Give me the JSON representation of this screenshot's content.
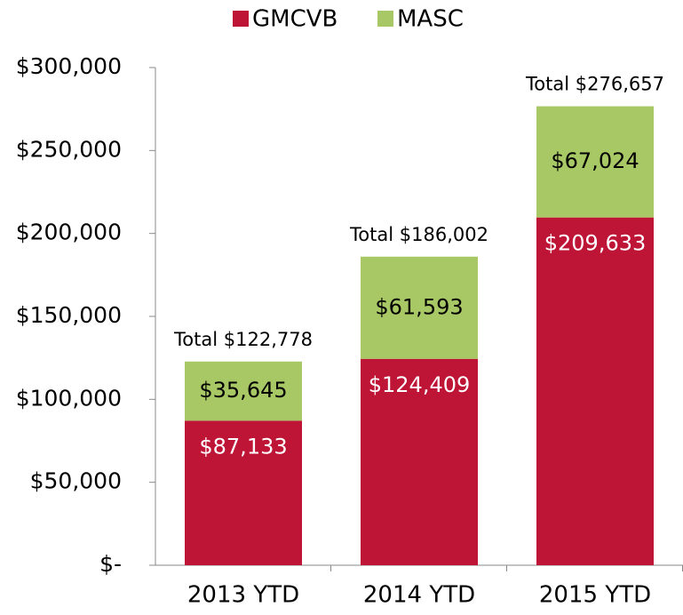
{
  "chart_data": {
    "type": "stacked_bar",
    "categories": [
      "2013 YTD",
      "2014 YTD",
      "2015 YTD"
    ],
    "series": [
      {
        "name": "GMCVB",
        "color": "#be1436",
        "values": [
          87133,
          124409,
          209633
        ],
        "value_labels": [
          "$87,133",
          "$124,409",
          "$209,633"
        ]
      },
      {
        "name": "MASC",
        "color": "#a8c865",
        "values": [
          35645,
          61593,
          67024
        ],
        "value_labels": [
          "$35,645",
          "$61,593",
          "$67,024"
        ]
      }
    ],
    "totals": {
      "values": [
        122778,
        186002,
        276657
      ],
      "value_labels": [
        "Total $122,778",
        "Total $186,002",
        "Total $276,657"
      ]
    },
    "ylim": [
      0,
      300000
    ],
    "yticks": [
      {
        "value": 0,
        "label": "$-"
      },
      {
        "value": 50000,
        "label": "$50,000"
      },
      {
        "value": 100000,
        "label": "$100,000"
      },
      {
        "value": 150000,
        "label": "$150,000"
      },
      {
        "value": 200000,
        "label": "$200,000"
      },
      {
        "value": 250000,
        "label": "$250,000"
      },
      {
        "value": 300000,
        "label": "$300,000"
      }
    ],
    "legend": "top",
    "grid": false
  }
}
